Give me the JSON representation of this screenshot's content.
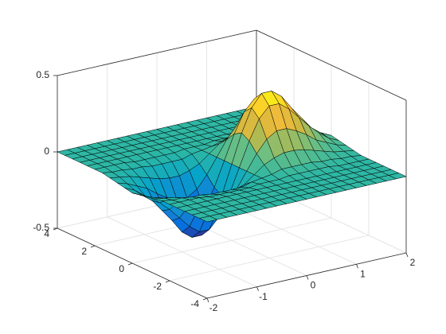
{
  "chart_data": {
    "type": "surface",
    "x": [
      -2,
      -1.8,
      -1.6,
      -1.4,
      -1.2,
      -1,
      -0.8,
      -0.6,
      -0.4,
      -0.2,
      0,
      0.2,
      0.4,
      0.6,
      0.8,
      1,
      1.2,
      1.4,
      1.6,
      1.8,
      2
    ],
    "y": [
      -4,
      -3.6,
      -3.2,
      -2.8,
      -2.4,
      -2,
      -1.6,
      -1.2,
      -0.8,
      -0.4,
      0,
      0.4,
      0.8,
      1.2,
      1.6,
      2,
      2.4,
      2.8,
      3.2,
      3.6,
      4
    ],
    "z": [
      [
        0,
        0,
        0,
        0,
        0,
        0,
        0,
        0,
        0,
        0,
        0,
        0,
        0,
        0,
        0,
        0,
        0,
        0,
        0,
        0,
        0
      ],
      [
        0,
        0,
        0,
        0,
        0,
        0,
        0,
        0,
        0,
        0,
        0,
        0,
        0,
        0,
        0,
        0,
        0,
        0,
        0,
        0,
        0
      ],
      [
        0,
        0,
        0,
        0,
        0,
        0,
        0,
        0,
        0,
        0,
        0,
        0,
        0,
        0,
        0,
        0,
        0,
        0,
        0,
        0,
        0
      ],
      [
        0,
        0,
        0,
        0,
        0,
        0,
        0,
        0,
        0,
        0,
        0,
        0,
        0,
        0,
        0,
        0,
        0,
        0,
        0,
        0,
        0
      ],
      [
        0,
        0,
        0,
        0,
        0,
        0,
        0,
        0,
        0,
        0,
        0,
        0,
        0,
        0,
        0,
        0,
        0,
        0,
        0,
        0,
        0
      ],
      [
        0,
        0,
        0,
        0,
        -0.01,
        -0.01,
        -0.01,
        -0.01,
        -0.01,
        0,
        0,
        0,
        0.01,
        0.01,
        0.01,
        0.01,
        0.01,
        0,
        0,
        0,
        0
      ],
      [
        0,
        -0.01,
        -0.01,
        -0.02,
        -0.02,
        -0.03,
        -0.03,
        -0.03,
        -0.03,
        -0.01,
        0,
        0.01,
        0.03,
        0.03,
        0.03,
        0.03,
        0.02,
        0.02,
        0.01,
        0.01,
        0
      ],
      [
        -0.01,
        -0.02,
        -0.03,
        -0.05,
        -0.07,
        -0.09,
        -0.1,
        -0.1,
        -0.08,
        -0.05,
        0,
        0.05,
        0.08,
        0.1,
        0.1,
        0.09,
        0.07,
        0.05,
        0.03,
        0.02,
        0.01
      ],
      [
        -0.02,
        -0.04,
        -0.07,
        -0.1,
        -0.15,
        -0.19,
        -0.22,
        -0.22,
        -0.18,
        -0.1,
        0,
        0.1,
        0.18,
        0.22,
        0.22,
        0.19,
        0.15,
        0.1,
        0.07,
        0.04,
        0.02
      ],
      [
        -0.03,
        -0.06,
        -0.11,
        -0.17,
        -0.24,
        -0.31,
        -0.36,
        -0.36,
        -0.29,
        -0.16,
        0,
        0.16,
        0.29,
        0.36,
        0.36,
        0.31,
        0.24,
        0.17,
        0.11,
        0.06,
        0.03
      ],
      [
        -0.04,
        -0.07,
        -0.12,
        -0.2,
        -0.28,
        -0.37,
        -0.42,
        -0.42,
        -0.34,
        -0.19,
        0,
        0.19,
        0.34,
        0.42,
        0.42,
        0.37,
        0.28,
        0.2,
        0.12,
        0.07,
        0.04
      ],
      [
        -0.03,
        -0.06,
        -0.11,
        -0.17,
        -0.24,
        -0.31,
        -0.36,
        -0.36,
        -0.29,
        -0.16,
        0,
        0.16,
        0.29,
        0.36,
        0.36,
        0.31,
        0.24,
        0.17,
        0.11,
        0.06,
        0.03
      ],
      [
        -0.02,
        -0.04,
        -0.07,
        -0.1,
        -0.15,
        -0.19,
        -0.22,
        -0.22,
        -0.18,
        -0.1,
        0,
        0.1,
        0.18,
        0.22,
        0.22,
        0.19,
        0.15,
        0.1,
        0.07,
        0.04,
        0.02
      ],
      [
        -0.01,
        -0.02,
        -0.03,
        -0.05,
        -0.07,
        -0.09,
        -0.1,
        -0.1,
        -0.08,
        -0.05,
        0,
        0.05,
        0.08,
        0.1,
        0.1,
        0.09,
        0.07,
        0.05,
        0.03,
        0.02,
        0.01
      ],
      [
        0,
        -0.01,
        -0.01,
        -0.02,
        -0.02,
        -0.03,
        -0.03,
        -0.03,
        -0.03,
        -0.01,
        0,
        0.01,
        0.03,
        0.03,
        0.03,
        0.03,
        0.02,
        0.02,
        0.01,
        0.01,
        0
      ],
      [
        0,
        0,
        0,
        0,
        -0.01,
        -0.01,
        -0.01,
        -0.01,
        -0.01,
        0,
        0,
        0,
        0.01,
        0.01,
        0.01,
        0.01,
        0.01,
        0,
        0,
        0,
        0
      ],
      [
        0,
        0,
        0,
        0,
        0,
        0,
        0,
        0,
        0,
        0,
        0,
        0,
        0,
        0,
        0,
        0,
        0,
        0,
        0,
        0,
        0
      ],
      [
        0,
        0,
        0,
        0,
        0,
        0,
        0,
        0,
        0,
        0,
        0,
        0,
        0,
        0,
        0,
        0,
        0,
        0,
        0,
        0,
        0
      ],
      [
        0,
        0,
        0,
        0,
        0,
        0,
        0,
        0,
        0,
        0,
        0,
        0,
        0,
        0,
        0,
        0,
        0,
        0,
        0,
        0,
        0
      ],
      [
        0,
        0,
        0,
        0,
        0,
        0,
        0,
        0,
        0,
        0,
        0,
        0,
        0,
        0,
        0,
        0,
        0,
        0,
        0,
        0,
        0
      ],
      [
        0,
        0,
        0,
        0,
        0,
        0,
        0,
        0,
        0,
        0,
        0,
        0,
        0,
        0,
        0,
        0,
        0,
        0,
        0,
        0,
        0
      ]
    ],
    "xlim": [
      -2,
      2
    ],
    "ylim": [
      -4,
      4
    ],
    "zlim": [
      -0.5,
      0.5
    ],
    "xticks": [
      -2,
      -1,
      0,
      1,
      2
    ],
    "yticks": [
      -4,
      -2,
      0,
      2,
      4
    ],
    "zticks": [
      -0.5,
      0,
      0.5
    ],
    "grid": true,
    "colormap": "parula",
    "edge_color": "#000000"
  }
}
